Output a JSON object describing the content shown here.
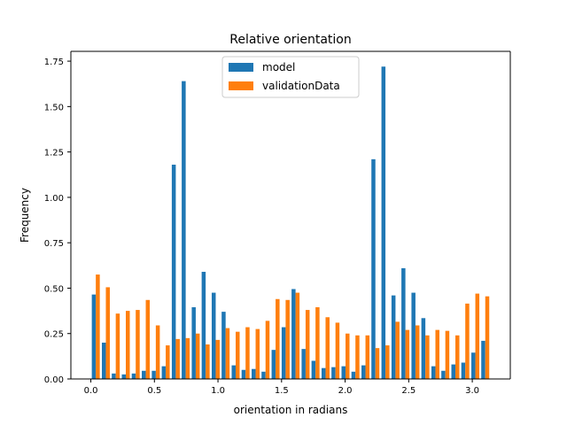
{
  "chart_data": {
    "type": "bar",
    "title": "Relative orientation",
    "xlabel": "orientation in radians",
    "ylabel": "Frequency",
    "xlim": [
      -0.157,
      3.299
    ],
    "ylim": [
      0,
      1.804
    ],
    "x_ticks": [
      0.0,
      0.5,
      1.0,
      1.5,
      2.0,
      2.5,
      3.0
    ],
    "x_tick_labels": [
      "0.0",
      "0.5",
      "1.0",
      "1.5",
      "2.0",
      "2.5",
      "3.0"
    ],
    "y_ticks": [
      0.0,
      0.25,
      0.5,
      0.75,
      1.0,
      1.25,
      1.5,
      1.75
    ],
    "y_tick_labels": [
      "0.00",
      "0.25",
      "0.50",
      "0.75",
      "1.00",
      "1.25",
      "1.50",
      "1.75"
    ],
    "grid": false,
    "legend_position": "upper center",
    "bin_width": 0.0785,
    "x": [
      0.039,
      0.118,
      0.196,
      0.275,
      0.353,
      0.432,
      0.511,
      0.589,
      0.668,
      0.746,
      0.825,
      0.903,
      0.982,
      1.06,
      1.139,
      1.217,
      1.296,
      1.374,
      1.453,
      1.532,
      1.61,
      1.689,
      1.767,
      1.846,
      1.924,
      2.003,
      2.081,
      2.16,
      2.238,
      2.317,
      2.396,
      2.474,
      2.553,
      2.631,
      2.71,
      2.788,
      2.867,
      2.945,
      3.024,
      3.102
    ],
    "series": [
      {
        "name": "model",
        "color": "#1f77b4",
        "values": [
          0.465,
          0.2,
          0.03,
          0.025,
          0.03,
          0.045,
          0.045,
          0.07,
          1.18,
          1.64,
          0.395,
          0.59,
          0.475,
          0.37,
          0.075,
          0.05,
          0.055,
          0.04,
          0.16,
          0.285,
          0.495,
          0.165,
          0.1,
          0.06,
          0.065,
          0.07,
          0.04,
          0.075,
          1.21,
          1.72,
          0.46,
          0.61,
          0.475,
          0.335,
          0.07,
          0.045,
          0.08,
          0.09,
          0.145,
          0.21
        ]
      },
      {
        "name": "validationData",
        "color": "#ff7f0e",
        "values": [
          0.575,
          0.505,
          0.36,
          0.375,
          0.38,
          0.435,
          0.295,
          0.185,
          0.22,
          0.225,
          0.25,
          0.19,
          0.215,
          0.28,
          0.26,
          0.285,
          0.275,
          0.32,
          0.44,
          0.435,
          0.475,
          0.38,
          0.395,
          0.34,
          0.31,
          0.25,
          0.24,
          0.24,
          0.17,
          0.185,
          0.315,
          0.27,
          0.295,
          0.24,
          0.27,
          0.265,
          0.24,
          0.415,
          0.47,
          0.455
        ]
      }
    ]
  }
}
